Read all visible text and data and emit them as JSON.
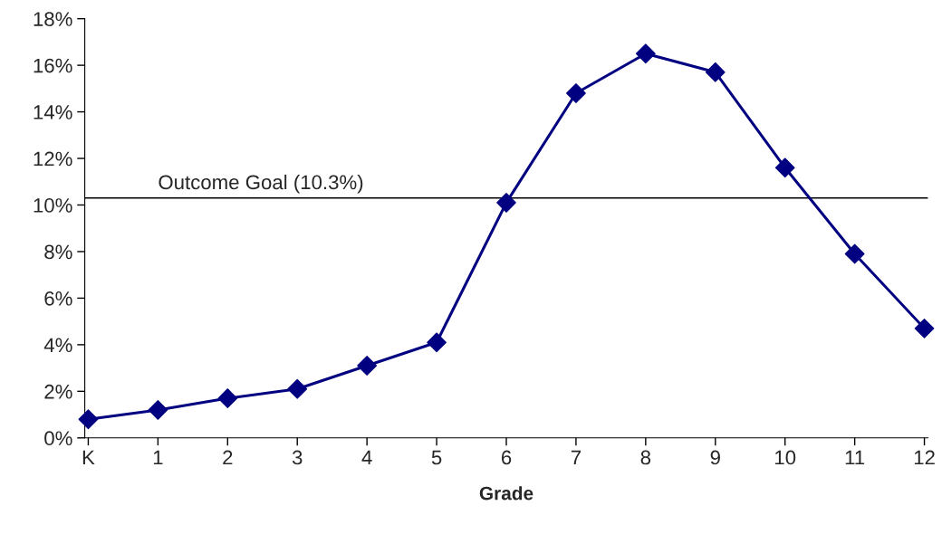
{
  "chart_data": {
    "type": "line",
    "xlabel": "Grade",
    "categories": [
      "K",
      "1",
      "2",
      "3",
      "4",
      "5",
      "6",
      "7",
      "8",
      "9",
      "10",
      "11",
      "12"
    ],
    "series": [
      {
        "color": "#000080",
        "values": [
          0.8,
          1.2,
          1.7,
          2.1,
          3.1,
          4.1,
          10.1,
          14.8,
          16.5,
          15.7,
          11.6,
          7.9,
          4.7
        ]
      }
    ],
    "ylim": [
      0,
      18
    ],
    "yticks": [
      {
        "value": 0,
        "label": "0%"
      },
      {
        "value": 2,
        "label": "2%"
      },
      {
        "value": 4,
        "label": "4%"
      },
      {
        "value": 6,
        "label": "6%"
      },
      {
        "value": 8,
        "label": "8%"
      },
      {
        "value": 10,
        "label": "10%"
      },
      {
        "value": 12,
        "label": "12%"
      },
      {
        "value": 14,
        "label": "14%"
      },
      {
        "value": 16,
        "label": "16%"
      },
      {
        "value": 18,
        "label": "18%"
      }
    ],
    "ref_lines": [
      {
        "axis": "y",
        "value": 10.3,
        "label": "Outcome Goal (10.3%)",
        "color": "#000000"
      }
    ],
    "marker": "diamond",
    "line_style": "solid",
    "grid": false,
    "legend": false
  }
}
